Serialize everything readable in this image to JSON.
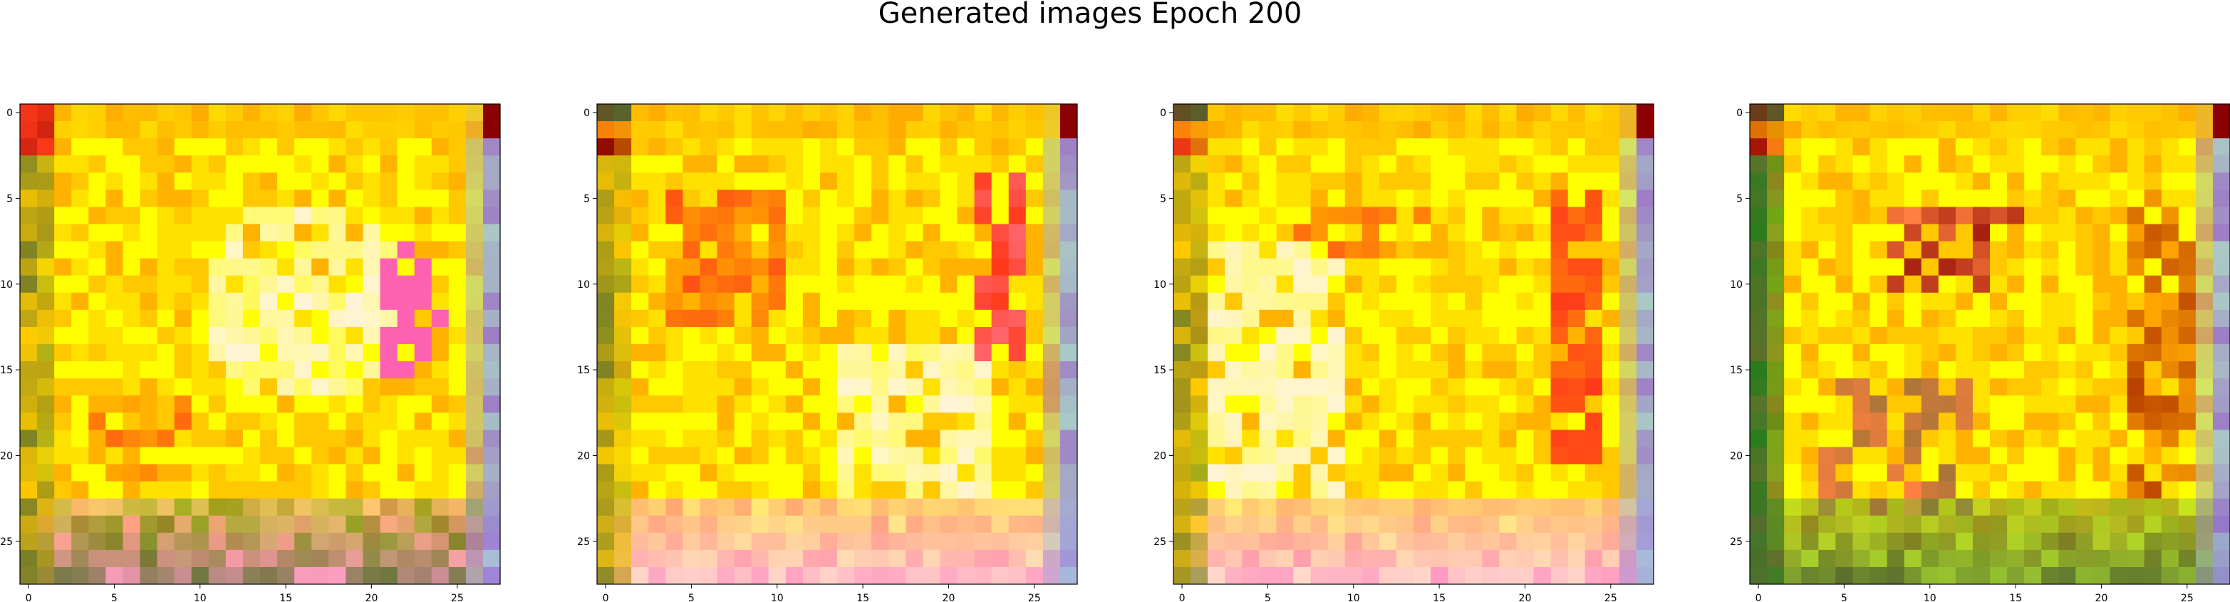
{
  "figure": {
    "title": "Generated images Epoch 200"
  },
  "chart_data": [
    {
      "type": "heatmap",
      "grid_size": [
        28,
        28
      ],
      "xticks": [
        0,
        5,
        10,
        15,
        20,
        25
      ],
      "yticks": [
        0,
        5,
        10,
        15,
        20,
        25
      ],
      "xlim": [
        -0.5,
        27.5
      ],
      "ylim": [
        27.5,
        -0.5
      ],
      "palette": [
        "#ffff00",
        "#ffe100",
        "#ffc800",
        "#ffa500",
        "#ff8040",
        "#ff3a1a",
        "#ff99cc",
        "#fff4d6",
        "#9acd32",
        "#556b2f",
        "#8b0000",
        "#9370db"
      ],
      "color_description": "pixel image with yellow/orange core, brighter cream area in lower middle, pink spots on right side, olive/red/purple borders"
    },
    {
      "type": "heatmap",
      "grid_size": [
        28,
        28
      ],
      "xticks": [
        0,
        5,
        10,
        15,
        20,
        25
      ],
      "yticks": [
        0,
        5,
        10,
        15,
        20,
        25
      ],
      "xlim": [
        -0.5,
        27.5
      ],
      "ylim": [
        27.5,
        -0.5
      ],
      "palette": [
        "#ffff00",
        "#ffe100",
        "#ffc800",
        "#ffa500",
        "#ff8040",
        "#ff3a1a",
        "#ff99cc",
        "#fff4d6",
        "#9acd32",
        "#556b2f",
        "#8b0000",
        "#9370db"
      ],
      "color_description": "pixel image with orange/red cluster on left, pale cream area in lower right, red streak near right edge"
    },
    {
      "type": "heatmap",
      "grid_size": [
        28,
        28
      ],
      "xticks": [
        0,
        5,
        10,
        15,
        20,
        25
      ],
      "yticks": [
        0,
        5,
        10,
        15,
        20,
        25
      ],
      "xlim": [
        -0.5,
        27.5
      ],
      "ylim": [
        27.5,
        -0.5
      ],
      "palette": [
        "#ffff00",
        "#ffe100",
        "#ffc800",
        "#ffa500",
        "#ff8040",
        "#ff3a1a",
        "#ff99cc",
        "#fff4d6",
        "#9acd32",
        "#556b2f",
        "#8b0000",
        "#9370db"
      ],
      "color_description": "pixel image with pale cream left half, yellow center, red vertical streak on the right, pink lower band"
    },
    {
      "type": "heatmap",
      "grid_size": [
        28,
        28
      ],
      "xticks": [
        0,
        5,
        10,
        15,
        20,
        25
      ],
      "yticks": [
        0,
        5,
        10,
        15,
        20,
        25
      ],
      "xlim": [
        -0.5,
        27.5
      ],
      "ylim": [
        27.5,
        -0.5
      ],
      "palette": [
        "#ffff00",
        "#ffe100",
        "#ffc800",
        "#ffa500",
        "#ff8040",
        "#ff3a1a",
        "#ff99cc",
        "#fff4d6",
        "#9acd32",
        "#556b2f",
        "#8b0000",
        "#9370db"
      ],
      "color_description": "pixel image with yellow/orange center, dark red accents, strong green/olive borders on left and bottom"
    }
  ]
}
